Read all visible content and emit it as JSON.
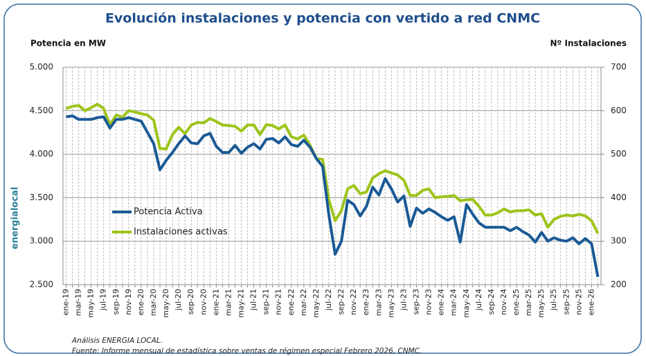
{
  "chart_data": {
    "type": "line",
    "title": "Evolución instalaciones y potencia con vertido a red CNMC",
    "y_label": "Potencia en MW",
    "y2_label": "Nº Instalaciones",
    "logo": "energialocal",
    "footer": [
      "Análisis ENERGIA LOCAL.",
      "Fuente: Informe mensual de estadística sobre ventas de régimen especial Febrero 2026, CNMC."
    ],
    "categories": [
      "ene-19",
      null,
      "mar-19",
      null,
      "may-19",
      null,
      "jul-19",
      null,
      "sep-19",
      null,
      "nov-19",
      null,
      "ene-20",
      null,
      "mar-20",
      null,
      "may-20",
      null,
      "jul-20",
      null,
      "sep-20",
      null,
      "nov-20",
      null,
      "ene-21",
      null,
      "mar-21",
      null,
      "may-21",
      null,
      "jul-21",
      null,
      "sep-21",
      null,
      "nov-21",
      null,
      "ene-22",
      null,
      "mar-22",
      null,
      "may-22",
      null,
      "jul-22",
      null,
      "sep-22",
      null,
      "nov-22",
      null,
      "ene-23",
      null,
      "mar-23",
      null,
      "may-23",
      null,
      "jul-23",
      null,
      "sep-23",
      null,
      "nov-23",
      null,
      "ene-24",
      null,
      "mar-24",
      null,
      "may-24",
      null,
      "jul-24",
      null,
      "sep-24",
      null,
      "nov-24",
      null,
      "ene-25",
      null,
      "mar-25",
      null,
      "may-25",
      null,
      "jul-25",
      null,
      "sep-25",
      null,
      "nov-25",
      null,
      "ene-26",
      null
    ],
    "series": [
      {
        "name": "Potencia Activa",
        "color": "#1a5a96",
        "values": [
          4430,
          4440,
          4400,
          4400,
          4400,
          4420,
          4430,
          4300,
          4400,
          4400,
          4420,
          4400,
          4380,
          4250,
          4120,
          3820,
          3930,
          4020,
          4120,
          4210,
          4130,
          4120,
          4210,
          4240,
          4090,
          4020,
          4020,
          4100,
          4010,
          4080,
          4120,
          4060,
          4170,
          4180,
          4130,
          4200,
          4110,
          4090,
          4160,
          4080,
          3950,
          3860,
          3300,
          2850,
          3000,
          3470,
          3420,
          3290,
          3400,
          3620,
          3530,
          3720,
          3600,
          3450,
          3520,
          3170,
          3380,
          3320,
          3370,
          3330,
          3280,
          3240,
          3280,
          2990,
          3420,
          3310,
          3210,
          3160,
          3160,
          3160,
          3160,
          3120,
          3160,
          3110,
          3070,
          2990,
          3100,
          3000,
          3040,
          3010,
          3000,
          3040,
          2970,
          3030,
          2970,
          2590
        ]
      },
      {
        "name": "Instalaciones activas",
        "color": "#9dc41a",
        "axis": "y2",
        "values": [
          605,
          610,
          612,
          600,
          607,
          615,
          605,
          567,
          590,
          585,
          600,
          597,
          593,
          590,
          578,
          513,
          512,
          545,
          562,
          547,
          567,
          573,
          572,
          582,
          575,
          567,
          566,
          564,
          553,
          567,
          567,
          545,
          568,
          566,
          558,
          567,
          540,
          535,
          544,
          520,
          490,
          488,
          395,
          347,
          370,
          420,
          428,
          409,
          413,
          445,
          455,
          462,
          457,
          452,
          440,
          405,
          405,
          417,
          420,
          400,
          402,
          403,
          405,
          393,
          395,
          396,
          380,
          360,
          360,
          365,
          374,
          367,
          370,
          370,
          372,
          360,
          363,
          332,
          350,
          357,
          360,
          358,
          362,
          358,
          347,
          318
        ]
      }
    ],
    "ylim": [
      2500,
      5000
    ],
    "yticks": [
      {
        "value": 2500,
        "label": "2.500"
      },
      {
        "value": 3000,
        "label": "3.000"
      },
      {
        "value": 3500,
        "label": "3.500"
      },
      {
        "value": 4000,
        "label": "4.000"
      },
      {
        "value": 4500,
        "label": "4.500"
      },
      {
        "value": 5000,
        "label": "5.000"
      }
    ],
    "y2lim": [
      200,
      700
    ],
    "y2ticks": [
      200,
      300,
      400,
      500,
      600,
      700
    ],
    "grid": true,
    "legend": "left"
  }
}
